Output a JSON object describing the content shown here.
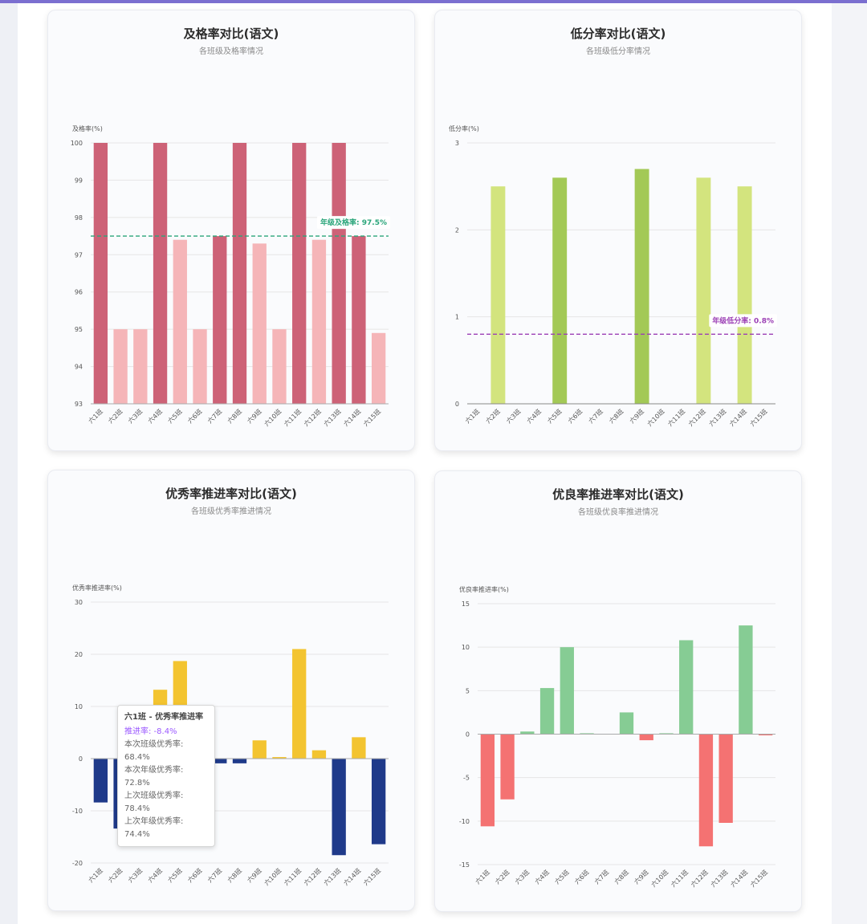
{
  "cards": [
    {
      "title": "及格率对比(语文)",
      "subtitle": "各班级及格率情况"
    },
    {
      "title": "低分率对比(语文)",
      "subtitle": "各班级低分率情况"
    },
    {
      "title": "优秀率推进率对比(语文)",
      "subtitle": "各班级优秀率推进情况"
    },
    {
      "title": "优良率推进率对比(语文)",
      "subtitle": "各班级优良率推进情况"
    }
  ],
  "tooltip": {
    "title": "六1班 - 优秀率推进率",
    "rate": "推进率: -8.4%",
    "line1": "本次班级优秀率: 68.4%",
    "line2": "本次年级优秀率: 72.8%",
    "line3": "上次班级优秀率: 78.4%",
    "line4": "上次年级优秀率: 74.4%"
  },
  "chart_data": [
    {
      "type": "bar",
      "categories": [
        "六1班",
        "六2班",
        "六3班",
        "六4班",
        "六5班",
        "六6班",
        "六7班",
        "六8班",
        "六9班",
        "六10班",
        "六11班",
        "六12班",
        "六13班",
        "六14班",
        "六15班"
      ],
      "values": [
        100,
        95,
        95,
        100,
        97.4,
        95,
        97.5,
        100,
        97.3,
        95,
        100,
        97.4,
        100,
        97.5,
        94.9
      ],
      "ylabel": "及格率(%)",
      "ylim": [
        93,
        100
      ],
      "yticks": [
        93,
        94,
        95,
        96,
        97,
        98,
        99,
        100
      ],
      "reference": {
        "value": 97.5,
        "label": "年级及格率: 97.5%",
        "color": "#2aa57a"
      },
      "colors": {
        "above": "#cd6277",
        "below": "#f5b5b8"
      }
    },
    {
      "type": "bar",
      "categories": [
        "六1班",
        "六2班",
        "六3班",
        "六4班",
        "六5班",
        "六6班",
        "六7班",
        "六8班",
        "六9班",
        "六10班",
        "六11班",
        "六12班",
        "六13班",
        "六14班",
        "六15班"
      ],
      "values": [
        0,
        2.5,
        0,
        0,
        2.6,
        0,
        0,
        0,
        2.7,
        0,
        0,
        2.6,
        0,
        2.5,
        0
      ],
      "ylabel": "低分率(%)",
      "ylim": [
        0,
        3
      ],
      "yticks": [
        0,
        1,
        2,
        3
      ],
      "reference": {
        "value": 0.8,
        "label": "年级低分率: 0.8%",
        "color": "#9b3fb5"
      },
      "colors": {
        "dark": "#a3c956",
        "light": "#d3e47e"
      },
      "dark_indices": [
        4,
        8
      ]
    },
    {
      "type": "bar",
      "categories": [
        "六1班",
        "六2班",
        "六3班",
        "六4班",
        "六5班",
        "六6班",
        "六7班",
        "六8班",
        "六9班",
        "六10班",
        "六11班",
        "六12班",
        "六13班",
        "六14班",
        "六15班"
      ],
      "values": [
        -8.4,
        -13.4,
        0,
        13.2,
        18.7,
        0,
        -0.9,
        -0.9,
        3.5,
        0.3,
        21,
        1.6,
        -18.5,
        4.1,
        -16.4
      ],
      "ylabel": "优秀率推进率(%)",
      "ylim": [
        -20,
        30
      ],
      "yticks": [
        -20,
        -10,
        0,
        10,
        20,
        30
      ],
      "colors": {
        "positive": "#f3c430",
        "negative": "#1f3a8a"
      }
    },
    {
      "type": "bar",
      "categories": [
        "六1班",
        "六2班",
        "六3班",
        "六4班",
        "六5班",
        "六6班",
        "六7班",
        "六8班",
        "六9班",
        "六10班",
        "六11班",
        "六12班",
        "六13班",
        "六14班",
        "六15班"
      ],
      "values": [
        -10.6,
        -7.5,
        0.3,
        5.3,
        10,
        0.1,
        0,
        2.5,
        -0.7,
        0.1,
        10.8,
        -12.9,
        -10.2,
        12.5,
        -0.1
      ],
      "ylabel": "优良率推进率(%)",
      "ylim": [
        -15,
        15
      ],
      "yticks": [
        -15,
        -10,
        -5,
        0,
        5,
        10,
        15
      ],
      "colors": {
        "positive": "#86cc94",
        "negative": "#f47272"
      }
    }
  ]
}
